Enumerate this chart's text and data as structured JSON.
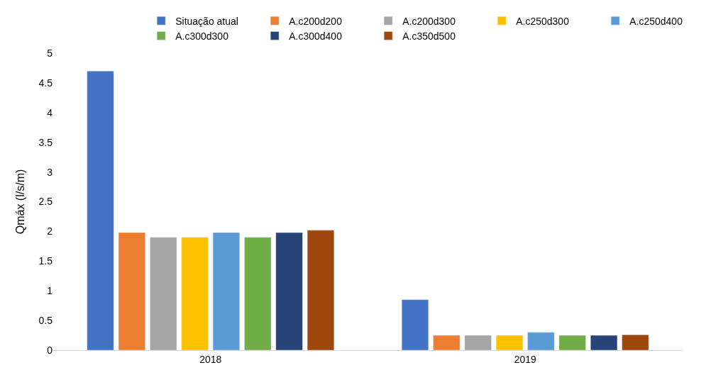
{
  "chart_data": {
    "type": "bar",
    "ylabel": "Qmáx (l/s/m)",
    "categories": [
      "2018",
      "2019"
    ],
    "series": [
      {
        "name": "Situação atual",
        "color": "#4472c4",
        "values": [
          4.7,
          0.85
        ]
      },
      {
        "name": "A.c200d200",
        "color": "#ed7d31",
        "values": [
          1.98,
          0.25
        ]
      },
      {
        "name": "A.c200d300",
        "color": "#a5a5a5",
        "values": [
          1.9,
          0.25
        ]
      },
      {
        "name": "A.c250d300",
        "color": "#ffc000",
        "values": [
          1.9,
          0.25
        ]
      },
      {
        "name": "A.c250d400",
        "color": "#5b9bd5",
        "values": [
          1.98,
          0.3
        ]
      },
      {
        "name": "A.c300d300",
        "color": "#70ad47",
        "values": [
          1.9,
          0.25
        ]
      },
      {
        "name": "A.c300d400",
        "color": "#264478",
        "values": [
          1.98,
          0.25
        ]
      },
      {
        "name": "A.c350d500",
        "color": "#9e480e",
        "values": [
          2.02,
          0.26
        ]
      }
    ],
    "ylim": [
      0,
      5
    ],
    "yticks": [
      0,
      0.5,
      1,
      1.5,
      2,
      2.5,
      3,
      3.5,
      4,
      4.5,
      5
    ],
    "grid": false,
    "legend": "top"
  }
}
